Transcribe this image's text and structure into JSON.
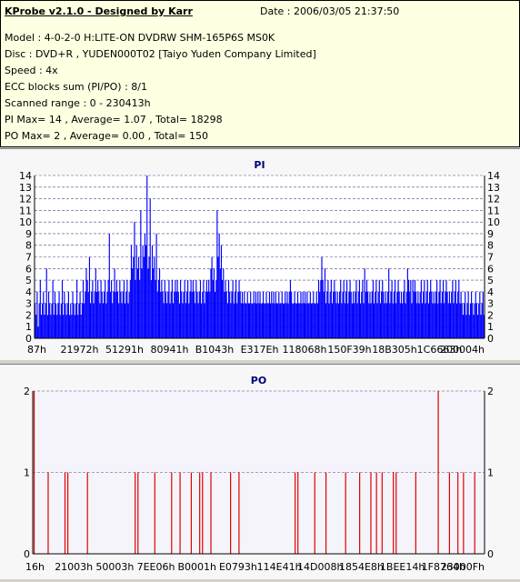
{
  "header": {
    "title": "KProbe v2.1.0 - Designed by Karr",
    "date": "Date : 2006/03/05 21:37:50",
    "lines": [
      "Model : 4-0-2-0 H:LITE-ON DVDRW SHM-165P6S MS0K",
      "Disc : DVD+R , YUDEN000T02 [Taiyo Yuden Company Limited]",
      "Speed : 4x",
      "ECC blocks sum (PI/PO) : 8/1",
      "Scanned range : 0 - 230413h",
      "PI Max= 14 , Average= 1.07 , Total= 18298",
      "PO Max= 2 , Average= 0.00 , Total= 150"
    ]
  },
  "colors": {
    "pi": "#0000ff",
    "po": "#e00000",
    "grid": "#4a4a8a",
    "title": "#000080"
  },
  "chart_data": [
    {
      "type": "bar",
      "title": "PI",
      "ylim": [
        0,
        14
      ],
      "yticks": [
        0,
        1,
        2,
        3,
        4,
        5,
        6,
        7,
        8,
        9,
        10,
        11,
        12,
        13,
        14
      ],
      "xlabels": [
        "87h",
        "21972h",
        "51291h",
        "80941h",
        "B1043h",
        "E317Eh",
        "118068h",
        "150F39h",
        "18B305h",
        "1C6663h",
        "200004h"
      ],
      "grid": "dashed horizontal",
      "series": [
        {
          "values_description": "PI error counts per block",
          "values": [
            3,
            2,
            4,
            1,
            3,
            5,
            2,
            3,
            4,
            2,
            3,
            6,
            2,
            4,
            3,
            2,
            3,
            5,
            2,
            4,
            3,
            2,
            3,
            4,
            2,
            3,
            5,
            2,
            4,
            3,
            2,
            3,
            4,
            2,
            3,
            2,
            4,
            3,
            2,
            3,
            5,
            2,
            3,
            4,
            2,
            3,
            5,
            3,
            4,
            6,
            5,
            4,
            7,
            3,
            4,
            5,
            3,
            4,
            6,
            4,
            5,
            4,
            3,
            5,
            4,
            3,
            4,
            5,
            3,
            4,
            5,
            9,
            4,
            5,
            3,
            4,
            6,
            4,
            5,
            4,
            3,
            5,
            4,
            3,
            4,
            5,
            3,
            4,
            5,
            3,
            4,
            5,
            8,
            6,
            7,
            10,
            5,
            8,
            6,
            7,
            5,
            11,
            6,
            8,
            7,
            9,
            8,
            14,
            6,
            7,
            12,
            5,
            8,
            6,
            7,
            5,
            9,
            4,
            5,
            6,
            4,
            5,
            4,
            3,
            5,
            4,
            3,
            4,
            5,
            3,
            4,
            5,
            3,
            4,
            5,
            4,
            5,
            4,
            3,
            5,
            4,
            3,
            4,
            5,
            3,
            4,
            5,
            3,
            4,
            5,
            4,
            5,
            4,
            3,
            5,
            4,
            3,
            4,
            5,
            3,
            4,
            5,
            3,
            4,
            5,
            4,
            5,
            4,
            6,
            7,
            5,
            6,
            4,
            5,
            11,
            7,
            9,
            6,
            8,
            5,
            6,
            4,
            5,
            4,
            3,
            5,
            4,
            3,
            4,
            5,
            3,
            4,
            5,
            3,
            4,
            5,
            4,
            3,
            4,
            3,
            4,
            3,
            3,
            4,
            3,
            3,
            4,
            3,
            3,
            4,
            3,
            4,
            3,
            4,
            3,
            4,
            3,
            3,
            4,
            3,
            3,
            4,
            3,
            3,
            4,
            3,
            4,
            3,
            4,
            3,
            4,
            3,
            3,
            4,
            3,
            3,
            4,
            3,
            3,
            4,
            3,
            4,
            3,
            4,
            5,
            4,
            3,
            3,
            4,
            3,
            3,
            4,
            3,
            3,
            4,
            3,
            4,
            3,
            4,
            3,
            4,
            3,
            3,
            4,
            3,
            3,
            4,
            3,
            3,
            4,
            3,
            5,
            4,
            5,
            7,
            5,
            4,
            6,
            3,
            4,
            5,
            3,
            4,
            5,
            3,
            4,
            5,
            4,
            3,
            4,
            3,
            4,
            5,
            3,
            4,
            5,
            3,
            4,
            5,
            3,
            4,
            5,
            4,
            3,
            4,
            3,
            4,
            5,
            3,
            4,
            5,
            3,
            4,
            5,
            3,
            6,
            4,
            5,
            4,
            3,
            4,
            3,
            4,
            5,
            3,
            4,
            5,
            3,
            4,
            5,
            3,
            4,
            5,
            4,
            3,
            4,
            3,
            4,
            6,
            3,
            4,
            5,
            3,
            4,
            5,
            3,
            4,
            5,
            4,
            3,
            4,
            3,
            4,
            5,
            3,
            4,
            6,
            5,
            4,
            5,
            3,
            5,
            4,
            5,
            4,
            3,
            4,
            3,
            4,
            5,
            3,
            4,
            5,
            3,
            4,
            5,
            3,
            4,
            5,
            4,
            3,
            4,
            3,
            4,
            5,
            3,
            4,
            5,
            3,
            4,
            5,
            3,
            4,
            5,
            4,
            3,
            4,
            3,
            4,
            5,
            3,
            4,
            5,
            3,
            4,
            5,
            3,
            4,
            3,
            2,
            3,
            4,
            2,
            3,
            4,
            2,
            3,
            4,
            3,
            2,
            3,
            4,
            3,
            2,
            3,
            4,
            2,
            3,
            4,
            2
          ]
        }
      ]
    },
    {
      "type": "bar",
      "title": "PO",
      "ylim": [
        0,
        2
      ],
      "yticks": [
        0,
        1,
        2
      ],
      "xlabels": [
        "16h",
        "21003h",
        "50003h",
        "7EE06h",
        "B0001h",
        "E0793h",
        "114E41h",
        "14D008h",
        "1854E8h",
        "1BEE14h",
        "1F8764h",
        "23000Fh"
      ],
      "grid": "dashed horizontal",
      "series": [
        {
          "values_description": "PO error counts per block",
          "values": [
            2,
            0,
            0,
            0,
            0,
            1,
            0,
            0,
            0,
            0,
            0,
            1,
            1,
            0,
            0,
            0,
            0,
            0,
            0,
            1,
            0,
            0,
            0,
            0,
            0,
            0,
            0,
            0,
            0,
            0,
            0,
            0,
            0,
            0,
            0,
            0,
            1,
            1,
            0,
            0,
            0,
            0,
            0,
            1,
            0,
            0,
            0,
            0,
            0,
            1,
            0,
            0,
            1,
            0,
            0,
            0,
            1,
            0,
            0,
            1,
            1,
            0,
            0,
            1,
            0,
            0,
            0,
            0,
            0,
            0,
            1,
            0,
            0,
            1,
            0,
            0,
            0,
            0,
            0,
            0,
            0,
            0,
            0,
            0,
            0,
            0,
            0,
            0,
            0,
            0,
            0,
            0,
            0,
            1,
            1,
            0,
            0,
            0,
            0,
            0,
            1,
            0,
            0,
            0,
            1,
            0,
            0,
            0,
            0,
            0,
            0,
            1,
            0,
            0,
            0,
            0,
            1,
            0,
            0,
            0,
            1,
            0,
            1,
            0,
            1,
            0,
            0,
            0,
            1,
            1,
            0,
            0,
            0,
            0,
            0,
            0,
            1,
            0,
            0,
            0,
            0,
            0,
            0,
            0,
            2,
            0,
            0,
            0,
            1,
            0,
            0,
            1,
            0,
            1,
            0,
            0,
            0,
            1,
            0,
            0,
            0
          ]
        }
      ]
    }
  ]
}
